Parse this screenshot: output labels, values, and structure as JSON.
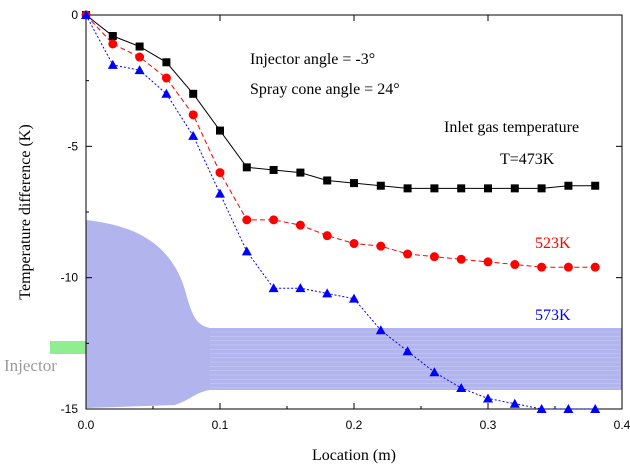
{
  "chart_data": {
    "type": "line",
    "xlabel": "Location (m)",
    "ylabel": "Temperature difference (K)",
    "xlim": [
      0.0,
      0.4
    ],
    "ylim": [
      -15,
      0
    ],
    "x_ticks": [
      "0.0",
      "0.1",
      "0.2",
      "0.3",
      "0.4"
    ],
    "y_ticks": [
      "0",
      "-5",
      "-10",
      "-15"
    ],
    "annotations": {
      "injector_angle": "Injector angle = -3°",
      "spray_cone_angle": "Spray cone angle = 24°",
      "legend_title": "Inlet gas temperature",
      "injector_label": "Injector"
    },
    "series": [
      {
        "name": "T=473K",
        "color": "#000000",
        "marker": "square",
        "line_style": "solid",
        "x": [
          0.0,
          0.02,
          0.04,
          0.06,
          0.08,
          0.1,
          0.12,
          0.14,
          0.16,
          0.18,
          0.2,
          0.22,
          0.24,
          0.26,
          0.28,
          0.3,
          0.32,
          0.34,
          0.36,
          0.38
        ],
        "y": [
          0.0,
          -0.8,
          -1.2,
          -1.8,
          -3.0,
          -4.4,
          -5.8,
          -5.9,
          -6.0,
          -6.3,
          -6.4,
          -6.5,
          -6.6,
          -6.6,
          -6.6,
          -6.6,
          -6.6,
          -6.6,
          -6.5,
          -6.5
        ]
      },
      {
        "name": "523K",
        "color": "#ff0000",
        "marker": "circle",
        "line_style": "dashed",
        "x": [
          0.0,
          0.02,
          0.04,
          0.06,
          0.08,
          0.1,
          0.12,
          0.14,
          0.16,
          0.18,
          0.2,
          0.22,
          0.24,
          0.26,
          0.28,
          0.3,
          0.32,
          0.34,
          0.36,
          0.38
        ],
        "y": [
          0.0,
          -1.1,
          -1.6,
          -2.4,
          -3.8,
          -6.0,
          -7.8,
          -7.8,
          -8.0,
          -8.4,
          -8.7,
          -8.8,
          -9.1,
          -9.2,
          -9.3,
          -9.4,
          -9.5,
          -9.6,
          -9.6,
          -9.6
        ]
      },
      {
        "name": "573K",
        "color": "#0000ff",
        "marker": "triangle",
        "line_style": "dotted",
        "x": [
          0.0,
          0.02,
          0.04,
          0.06,
          0.08,
          0.1,
          0.12,
          0.14,
          0.16,
          0.18,
          0.2,
          0.22,
          0.24,
          0.26,
          0.28,
          0.3,
          0.32,
          0.34,
          0.36,
          0.38
        ],
        "y": [
          0.0,
          -1.9,
          -2.1,
          -3.0,
          -4.6,
          -6.8,
          -9.0,
          -10.4,
          -10.4,
          -10.6,
          -10.8,
          -12.0,
          -12.8,
          -13.6,
          -14.2,
          -14.6,
          -14.8,
          -15.0,
          -15.0,
          -15.0
        ]
      }
    ],
    "grid": false,
    "overlay_color": "#9fa3e6",
    "injector_marker_color": "#90ee90"
  }
}
